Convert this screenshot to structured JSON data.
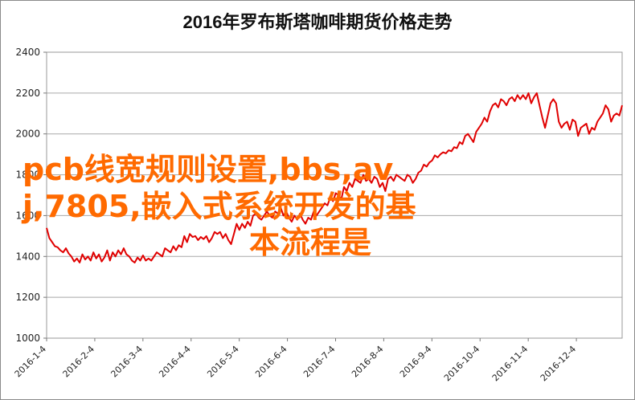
{
  "chart_data": {
    "type": "line",
    "title": "2016年罗布斯塔咖啡期货价格走势",
    "xlabel": "",
    "ylabel": "",
    "ylim": [
      1000,
      2400
    ],
    "y_ticks": [
      1000,
      1200,
      1400,
      1600,
      1800,
      2000,
      2200,
      2400
    ],
    "x_tick_labels": [
      "2016-1-4",
      "2016-2-4",
      "2016-3-4",
      "2016-4-4",
      "2016-5-4",
      "2016-6-4",
      "2016-7-4",
      "2016-8-4",
      "2016-9-4",
      "2016-10-4",
      "2016-11-4",
      "2016-12-4"
    ],
    "grid": "horizontal",
    "line_color": "#e00000",
    "series": [
      {
        "values": [
          1540,
          1490,
          1470,
          1450,
          1445,
          1430,
          1420,
          1440,
          1415,
          1400,
          1375,
          1390,
          1370,
          1410,
          1385,
          1400,
          1380,
          1420,
          1390,
          1410,
          1375,
          1395,
          1430,
          1380,
          1420,
          1400,
          1430,
          1410,
          1440,
          1410,
          1400,
          1380,
          1370,
          1395,
          1380,
          1405,
          1380,
          1390,
          1380,
          1400,
          1420,
          1410,
          1400,
          1440,
          1430,
          1420,
          1450,
          1430,
          1455,
          1445,
          1500,
          1470,
          1510,
          1495,
          1500,
          1480,
          1495,
          1485,
          1500,
          1470,
          1490,
          1520,
          1510,
          1520,
          1490,
          1510,
          1480,
          1460,
          1510,
          1560,
          1530,
          1560,
          1540,
          1570,
          1550,
          1600,
          1610,
          1590,
          1580,
          1600,
          1620,
          1600,
          1590,
          1620,
          1610,
          1640,
          1600,
          1620,
          1590,
          1570,
          1600,
          1580,
          1610,
          1580,
          1560,
          1590,
          1580,
          1620,
          1600,
          1620,
          1640,
          1660,
          1650,
          1690,
          1670,
          1710,
          1700,
          1680,
          1740,
          1720,
          1760,
          1740,
          1780,
          1770,
          1760,
          1800,
          1770,
          1780,
          1760,
          1790,
          1780,
          1740,
          1760,
          1720,
          1780,
          1790,
          1770,
          1800,
          1790,
          1780,
          1770,
          1800,
          1790,
          1760,
          1780,
          1810,
          1820,
          1850,
          1840,
          1860,
          1870,
          1895,
          1885,
          1900,
          1910,
          1905,
          1920,
          1915,
          1935,
          1930,
          1960,
          1950,
          1990,
          2000,
          1980,
          1960,
          2010,
          2030,
          2050,
          2080,
          2060,
          2110,
          2140,
          2150,
          2130,
          2170,
          2160,
          2140,
          2170,
          2180,
          2160,
          2190,
          2170,
          2190,
          2170,
          2200,
          2150,
          2180,
          2200,
          2140,
          2080,
          2030,
          2090,
          2150,
          2170,
          2150,
          2060,
          2030,
          2050,
          2060,
          2020,
          2070,
          2060,
          1990,
          2030,
          2040,
          2050,
          2000,
          2030,
          2020,
          2060,
          2080,
          2100,
          2140,
          2120,
          2060,
          2090,
          2100,
          2090,
          2140
        ]
      }
    ]
  },
  "watermark": {
    "line1": "pcb线宽规则设置,bbs,av",
    "line2": "j,7805,嵌入式系统开发的基",
    "line3": "本流程是"
  }
}
